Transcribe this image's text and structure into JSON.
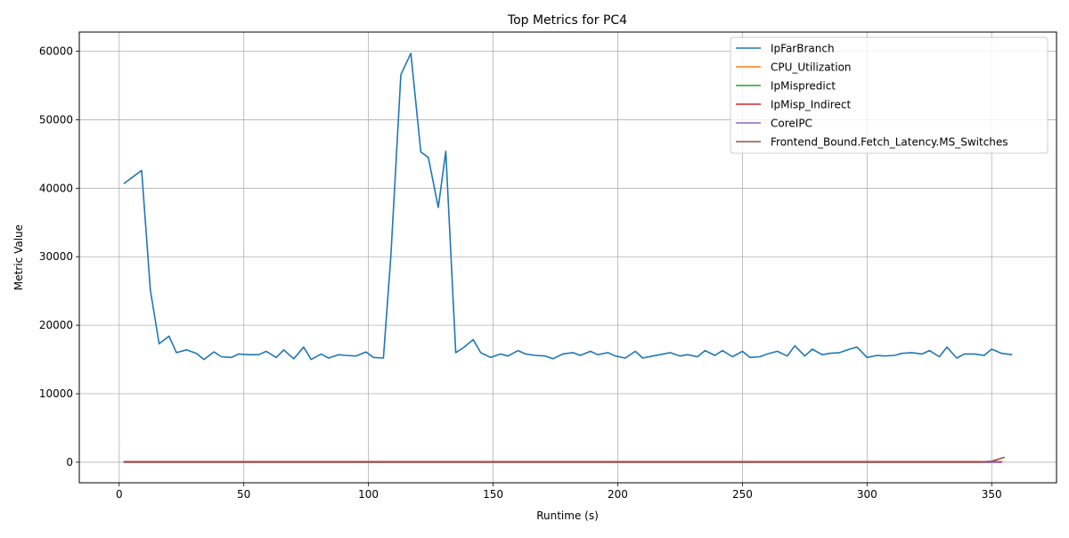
{
  "chart_data": {
    "type": "line",
    "title": "Top Metrics for PC4",
    "xlabel": "Runtime (s)",
    "ylabel": "Metric Value",
    "xlim": [
      -16,
      376
    ],
    "ylim": [
      -3000,
      62800
    ],
    "xticks": [
      0,
      50,
      100,
      150,
      200,
      250,
      300,
      350
    ],
    "xtick_labels": [
      "0",
      "50",
      "100",
      "150",
      "200",
      "250",
      "300",
      "350"
    ],
    "yticks": [
      0,
      10000,
      20000,
      30000,
      40000,
      50000,
      60000
    ],
    "ytick_labels": [
      "0",
      "10000",
      "20000",
      "30000",
      "40000",
      "50000",
      "60000"
    ],
    "grid": true,
    "legend_position": "top-right",
    "series": [
      {
        "name": "IpFarBranch",
        "color": "#1f77b4",
        "x": [
          2,
          9,
          12.5,
          16,
          20,
          23,
          27,
          31,
          34,
          38,
          41,
          45,
          48,
          52,
          56,
          59,
          63,
          66,
          70,
          74,
          77,
          81,
          84,
          88,
          91,
          95,
          99,
          102,
          106,
          109,
          113,
          117,
          121,
          124,
          128,
          131,
          135,
          138,
          142,
          145,
          149,
          153,
          156,
          160,
          163,
          167,
          171,
          174,
          178,
          182,
          185,
          189,
          192,
          196,
          199,
          203,
          207,
          210,
          214,
          217,
          221,
          225,
          228,
          232,
          235,
          239,
          242,
          246,
          250,
          253,
          257,
          260,
          264,
          268,
          271,
          275,
          278,
          282,
          285,
          289,
          293,
          296,
          300,
          304,
          307,
          311,
          314,
          318,
          322,
          325,
          329,
          332,
          336,
          339,
          343,
          347,
          350,
          354,
          358
        ],
        "y": [
          40700,
          42600,
          25100,
          17300,
          18400,
          16000,
          16400,
          15900,
          15000,
          16100,
          15400,
          15300,
          15800,
          15700,
          15700,
          16200,
          15300,
          16400,
          15100,
          16800,
          15000,
          15800,
          15200,
          15700,
          15600,
          15500,
          16100,
          15300,
          15200,
          30200,
          56600,
          59700,
          45300,
          44500,
          37200,
          45400,
          16000,
          16700,
          17900,
          16000,
          15300,
          15800,
          15500,
          16300,
          15800,
          15600,
          15500,
          15100,
          15800,
          16000,
          15600,
          16200,
          15700,
          16000,
          15500,
          15200,
          16200,
          15200,
          15500,
          15700,
          16000,
          15500,
          15700,
          15400,
          16300,
          15600,
          16300,
          15400,
          16200,
          15300,
          15400,
          15800,
          16200,
          15500,
          17000,
          15500,
          16500,
          15700,
          15900,
          16000,
          16500,
          16800,
          15300,
          15600,
          15500,
          15600,
          15900,
          16000,
          15800,
          16300,
          15400,
          16800,
          15200,
          15800,
          15800,
          15600,
          16500,
          15900,
          15700
        ]
      },
      {
        "name": "CPU_Utilization",
        "color": "#ff7f0e",
        "x": [
          2,
          100,
          200,
          300,
          354
        ],
        "y": [
          1,
          1,
          1,
          1,
          1
        ]
      },
      {
        "name": "IpMispredict",
        "color": "#2ca02c",
        "x": [
          2,
          100,
          200,
          300,
          354
        ],
        "y": [
          40,
          40,
          40,
          40,
          40
        ]
      },
      {
        "name": "IpMisp_Indirect",
        "color": "#d62728",
        "x": [
          2,
          100,
          200,
          300,
          354
        ],
        "y": [
          80,
          80,
          80,
          80,
          80
        ]
      },
      {
        "name": "CoreIPC",
        "color": "#9467bd",
        "x": [
          2,
          100,
          200,
          300,
          354
        ],
        "y": [
          2,
          2,
          2,
          2,
          2
        ]
      },
      {
        "name": "Frontend_Bound.Fetch_Latency.MS_Switches",
        "color": "#8c564b",
        "x": [
          2,
          100,
          200,
          300,
          345,
          350,
          355
        ],
        "y": [
          30,
          30,
          30,
          30,
          30,
          150,
          700
        ]
      }
    ]
  }
}
